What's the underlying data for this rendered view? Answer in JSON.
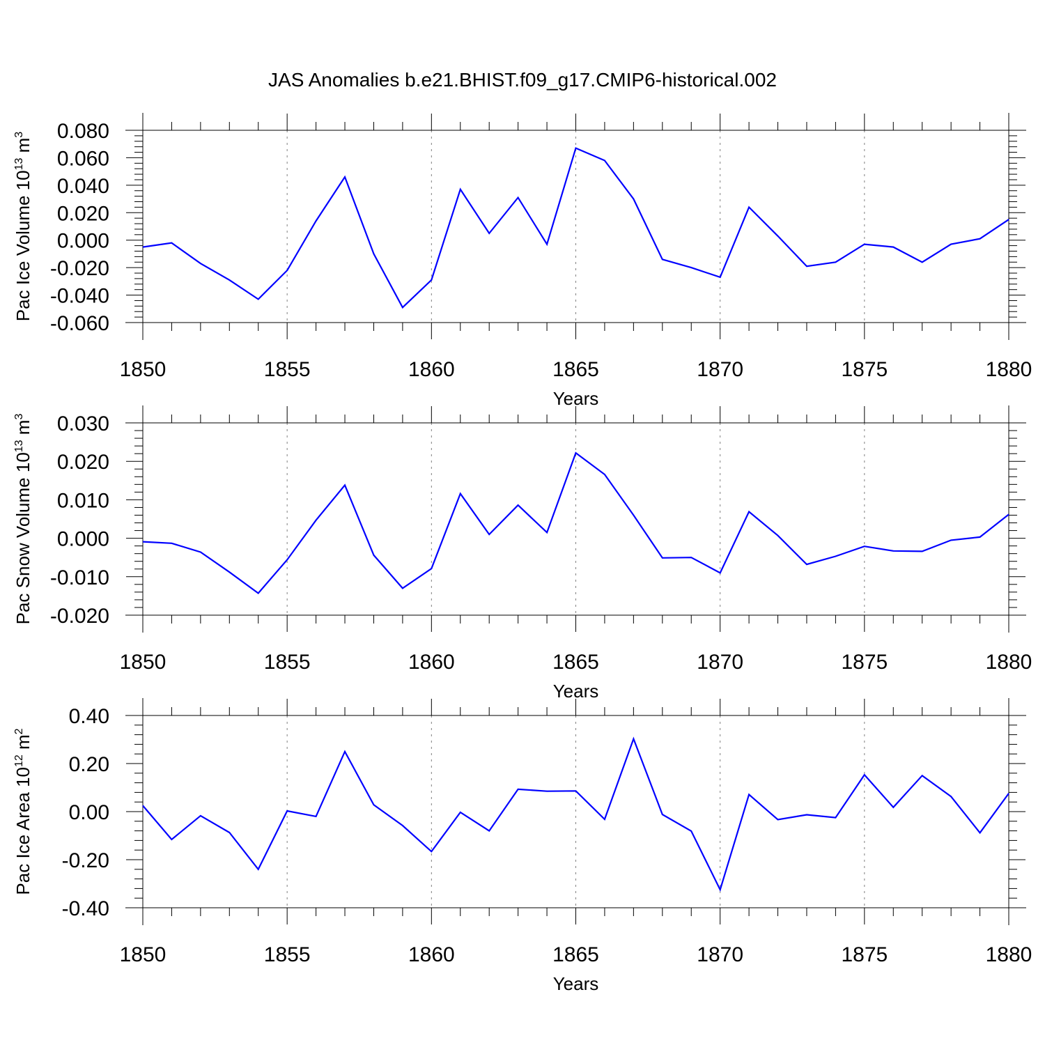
{
  "figure": {
    "title": "JAS Anomalies b.e21.BHIST.f09_g17.CMIP6-historical.002"
  },
  "chart_data": [
    {
      "type": "line",
      "xlabel": "Years",
      "ylabel": {
        "text": "Pac Ice Volume 10",
        "exp": "13",
        "unit": " m",
        "unit_exp": "3"
      },
      "xlim": [
        1850,
        1880
      ],
      "ylim": [
        -0.06,
        0.08
      ],
      "yticks": [
        -0.06,
        -0.04,
        -0.02,
        0.0,
        0.02,
        0.04,
        0.06,
        0.08
      ],
      "ytick_labels": [
        "-0.060",
        "-0.040",
        "-0.020",
        "0.000",
        "0.020",
        "0.040",
        "0.060",
        "0.080"
      ],
      "xticks": [
        1850,
        1855,
        1860,
        1865,
        1870,
        1875,
        1880
      ],
      "xtick_labels": [
        "1850",
        "1855",
        "1860",
        "1865",
        "1870",
        "1875",
        "1880"
      ],
      "grid": "vertical dashed at major x ticks",
      "color": "#0000ff",
      "x": [
        1850,
        1851,
        1852,
        1853,
        1854,
        1855,
        1856,
        1857,
        1858,
        1859,
        1860,
        1861,
        1862,
        1863,
        1864,
        1865,
        1866,
        1867,
        1868,
        1869,
        1870,
        1871,
        1872,
        1873,
        1874,
        1875,
        1876,
        1877,
        1878,
        1879,
        1880
      ],
      "values": [
        -0.005,
        -0.002,
        -0.017,
        -0.029,
        -0.043,
        -0.022,
        0.014,
        0.046,
        -0.01,
        -0.049,
        -0.029,
        0.037,
        0.005,
        0.031,
        -0.003,
        0.067,
        0.058,
        0.03,
        -0.014,
        -0.02,
        -0.027,
        0.024,
        0.003,
        -0.019,
        -0.016,
        -0.003,
        -0.005,
        -0.016,
        -0.003,
        0.001,
        0.015
      ]
    },
    {
      "type": "line",
      "xlabel": "Years",
      "ylabel": {
        "text": "Pac Snow Volume 10",
        "exp": "13",
        "unit": " m",
        "unit_exp": "3"
      },
      "xlim": [
        1850,
        1880
      ],
      "ylim": [
        -0.02,
        0.03
      ],
      "yticks": [
        -0.02,
        -0.01,
        0.0,
        0.01,
        0.02,
        0.03
      ],
      "ytick_labels": [
        "-0.020",
        "-0.010",
        "0.000",
        "0.010",
        "0.020",
        "0.030"
      ],
      "xticks": [
        1850,
        1855,
        1860,
        1865,
        1870,
        1875,
        1880
      ],
      "xtick_labels": [
        "1850",
        "1855",
        "1860",
        "1865",
        "1870",
        "1875",
        "1880"
      ],
      "grid": "vertical dashed at major x ticks",
      "color": "#0000ff",
      "x": [
        1850,
        1851,
        1852,
        1853,
        1854,
        1855,
        1856,
        1857,
        1858,
        1859,
        1860,
        1861,
        1862,
        1863,
        1864,
        1865,
        1866,
        1867,
        1868,
        1869,
        1870,
        1871,
        1872,
        1873,
        1874,
        1875,
        1876,
        1877,
        1878,
        1879,
        1880
      ],
      "values": [
        -0.0009,
        -0.0013,
        -0.0036,
        -0.0088,
        -0.0143,
        -0.0056,
        0.0047,
        0.0138,
        -0.0044,
        -0.013,
        -0.0079,
        0.0116,
        0.001,
        0.0086,
        0.0015,
        0.0222,
        0.0166,
        0.006,
        -0.0051,
        -0.005,
        -0.009,
        0.0069,
        0.0007,
        -0.0068,
        -0.0047,
        -0.0021,
        -0.0033,
        -0.0034,
        -0.0005,
        0.0003,
        0.0062
      ]
    },
    {
      "type": "line",
      "xlabel": "Years",
      "ylabel": {
        "text": "Pac Ice Area 10",
        "exp": "12",
        "unit": " m",
        "unit_exp": "2"
      },
      "xlim": [
        1850,
        1880
      ],
      "ylim": [
        -0.4,
        0.4
      ],
      "yticks": [
        -0.4,
        -0.2,
        0.0,
        0.2,
        0.4
      ],
      "ytick_labels": [
        "-0.40",
        "-0.20",
        "0.00",
        "0.20",
        "0.40"
      ],
      "xticks": [
        1850,
        1855,
        1860,
        1865,
        1870,
        1875,
        1880
      ],
      "xtick_labels": [
        "1850",
        "1855",
        "1860",
        "1865",
        "1870",
        "1875",
        "1880"
      ],
      "grid": "vertical dashed at major x ticks",
      "color": "#0000ff",
      "x": [
        1850,
        1851,
        1852,
        1853,
        1854,
        1855,
        1856,
        1857,
        1858,
        1859,
        1860,
        1861,
        1862,
        1863,
        1864,
        1865,
        1866,
        1867,
        1868,
        1869,
        1870,
        1871,
        1872,
        1873,
        1874,
        1875,
        1876,
        1877,
        1878,
        1879,
        1880
      ],
      "values": [
        0.025,
        -0.116,
        -0.017,
        -0.087,
        -0.24,
        0.003,
        -0.02,
        0.25,
        0.028,
        -0.058,
        -0.166,
        -0.003,
        -0.08,
        0.093,
        0.085,
        0.086,
        -0.032,
        0.303,
        -0.012,
        -0.081,
        -0.325,
        0.071,
        -0.033,
        -0.013,
        -0.025,
        0.153,
        0.018,
        0.15,
        0.063,
        -0.088,
        0.076
      ]
    }
  ]
}
